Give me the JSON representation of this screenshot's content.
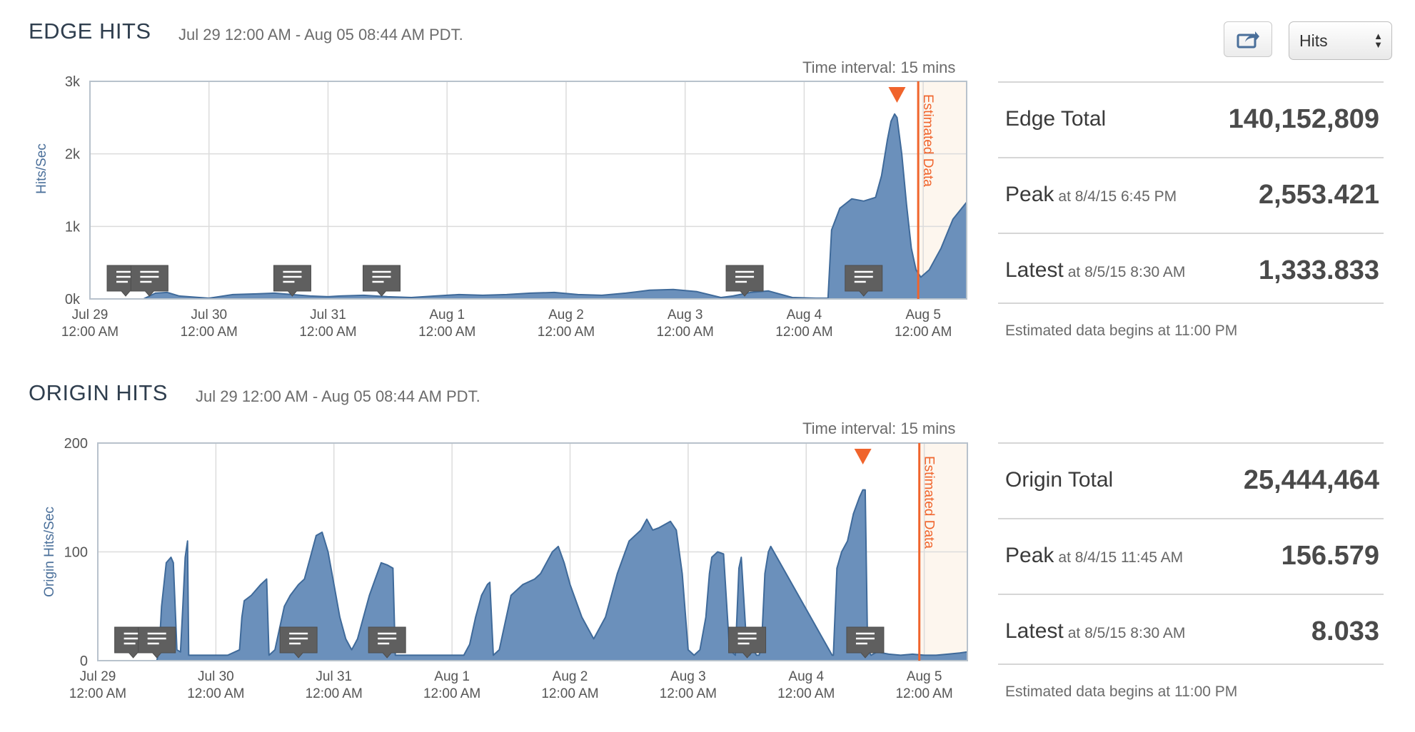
{
  "toolbar": {
    "share_icon": "share-icon",
    "metric_select": "Hits"
  },
  "colors": {
    "area_fill": "#6b90bb",
    "area_stroke": "#3f6a9a",
    "estimated": "#f0642c",
    "estimated_bg": "#fdf6ee",
    "marker_bg": "#5f5f5f"
  },
  "sections": [
    {
      "title": "EDGE HITS",
      "range": "Jul 29 12:00 AM - Aug 05 08:44 AM PDT.",
      "interval": "Time interval: 15 mins",
      "estimated_label": "Estimated Data",
      "stats": {
        "total_label": "Edge Total",
        "total_value": "140,152,809",
        "peak_label": "Peak",
        "peak_sub": "at 8/4/15 6:45 PM",
        "peak_value": "2,553.421",
        "latest_label": "Latest",
        "latest_sub": "at 8/5/15 8:30 AM",
        "latest_value": "1,333.833",
        "note": "Estimated data begins at 11:00 PM"
      }
    },
    {
      "title": "ORIGIN HITS",
      "range": "Jul 29 12:00 AM - Aug 05 08:44 AM PDT.",
      "interval": "Time interval: 15 mins",
      "estimated_label": "Estimated Data",
      "stats": {
        "total_label": "Origin Total",
        "total_value": "25,444,464",
        "peak_label": "Peak",
        "peak_sub": "at 8/4/15 11:45 AM",
        "peak_value": "156.579",
        "latest_label": "Latest",
        "latest_sub": "at 8/5/15 8:30 AM",
        "latest_value": "8.033",
        "note": "Estimated data begins at 11:00 PM"
      }
    }
  ],
  "chart_data": [
    {
      "type": "area",
      "ylabel": "Hits/Sec",
      "x_unit": "days since Jul 29 12:00 AM",
      "x_range": [
        0,
        7.365
      ],
      "ylim": [
        0,
        3000
      ],
      "yticks": [
        0,
        1000,
        2000,
        3000
      ],
      "yticklabels": [
        "0k",
        "1k",
        "2k",
        "3k"
      ],
      "xticks": [
        0,
        1,
        2,
        3,
        4,
        5,
        6,
        7
      ],
      "xticklabels": [
        [
          "Jul 29",
          "12:00 AM"
        ],
        [
          "Jul 30",
          "12:00 AM"
        ],
        [
          "Jul 31",
          "12:00 AM"
        ],
        [
          "Aug 1",
          "12:00 AM"
        ],
        [
          "Aug 2",
          "12:00 AM"
        ],
        [
          "Aug 3",
          "12:00 AM"
        ],
        [
          "Aug 4",
          "12:00 AM"
        ],
        [
          "Aug 5",
          "12:00 AM"
        ]
      ],
      "estimated_start": 6.958,
      "peak_x": 6.78,
      "annotations": [
        0.3,
        0.5,
        1.7,
        2.45,
        5.5,
        6.5
      ],
      "series": [
        {
          "x": [
            0,
            0.45,
            0.55,
            0.65,
            0.75,
            1.0,
            1.2,
            1.4,
            1.55,
            1.7,
            1.85,
            2.0,
            2.1,
            2.3,
            2.5,
            2.7,
            2.9,
            3.1,
            3.3,
            3.5,
            3.7,
            3.9,
            4.1,
            4.3,
            4.5,
            4.7,
            4.9,
            5.1,
            5.3,
            5.4,
            5.55,
            5.7,
            5.9,
            6.1,
            6.2,
            6.23,
            6.3,
            6.4,
            6.5,
            6.6,
            6.65,
            6.7,
            6.73,
            6.76,
            6.78,
            6.82,
            6.86,
            6.9,
            6.94,
            6.98,
            7.05,
            7.15,
            7.25,
            7.365
          ],
          "y": [
            0,
            0,
            80,
            90,
            40,
            10,
            60,
            70,
            80,
            60,
            40,
            30,
            40,
            50,
            30,
            20,
            40,
            60,
            50,
            60,
            80,
            90,
            60,
            50,
            80,
            120,
            130,
            100,
            20,
            40,
            90,
            110,
            20,
            10,
            10,
            950,
            1250,
            1380,
            1350,
            1400,
            1700,
            2200,
            2450,
            2550,
            2500,
            2000,
            1300,
            700,
            400,
            300,
            400,
            700,
            1100,
            1334
          ]
        }
      ]
    },
    {
      "type": "area",
      "ylabel": "Origin Hits/Sec",
      "x_unit": "days since Jul 29 12:00 AM",
      "x_range": [
        0,
        7.365
      ],
      "ylim": [
        0,
        200
      ],
      "yticks": [
        0,
        100,
        200
      ],
      "yticklabels": [
        "0",
        "100",
        "200"
      ],
      "xticks": [
        0,
        1,
        2,
        3,
        4,
        5,
        6,
        7
      ],
      "xticklabels": [
        [
          "Jul 29",
          "12:00 AM"
        ],
        [
          "Jul 30",
          "12:00 AM"
        ],
        [
          "Jul 31",
          "12:00 AM"
        ],
        [
          "Aug 1",
          "12:00 AM"
        ],
        [
          "Aug 2",
          "12:00 AM"
        ],
        [
          "Aug 3",
          "12:00 AM"
        ],
        [
          "Aug 4",
          "12:00 AM"
        ],
        [
          "Aug 5",
          "12:00 AM"
        ]
      ],
      "estimated_start": 6.958,
      "peak_x": 6.48,
      "annotations": [
        0.3,
        0.5,
        1.7,
        2.45,
        5.5,
        6.5
      ],
      "series": [
        {
          "x": [
            0,
            0.5,
            0.52,
            0.54,
            0.58,
            0.62,
            0.64,
            0.67,
            0.7,
            0.72,
            0.74,
            0.76,
            0.77,
            0.9,
            1.0,
            1.1,
            1.2,
            1.22,
            1.24,
            1.3,
            1.38,
            1.43,
            1.45,
            1.5,
            1.58,
            1.63,
            1.7,
            1.75,
            1.8,
            1.85,
            1.9,
            1.95,
            2.0,
            2.05,
            2.1,
            2.15,
            2.2,
            2.25,
            2.3,
            2.35,
            2.4,
            2.45,
            2.5,
            2.52,
            2.6,
            3.05,
            3.1,
            3.15,
            3.2,
            3.25,
            3.3,
            3.32,
            3.35,
            3.4,
            3.5,
            3.6,
            3.7,
            3.75,
            3.8,
            3.85,
            3.9,
            3.95,
            4.0,
            4.1,
            4.2,
            4.3,
            4.4,
            4.5,
            4.6,
            4.65,
            4.7,
            4.75,
            4.8,
            4.85,
            4.9,
            4.95,
            5.0,
            5.05,
            5.1,
            5.15,
            5.18,
            5.2,
            5.25,
            5.3,
            5.35,
            5.4,
            5.43,
            5.45,
            5.5,
            5.52,
            5.55,
            5.58,
            5.6,
            5.62,
            5.65,
            5.68,
            5.7,
            6.22,
            6.23,
            6.26,
            6.3,
            6.35,
            6.4,
            6.45,
            6.48,
            6.5,
            6.52,
            6.55,
            6.6,
            6.7,
            6.8,
            6.9,
            7.0,
            7.1,
            7.2,
            7.3,
            7.365
          ],
          "y": [
            0,
            0,
            10,
            50,
            90,
            95,
            90,
            10,
            8,
            50,
            95,
            110,
            5,
            5,
            5,
            5,
            10,
            40,
            55,
            60,
            70,
            75,
            5,
            10,
            50,
            60,
            70,
            75,
            95,
            115,
            118,
            100,
            70,
            40,
            20,
            10,
            20,
            40,
            60,
            75,
            90,
            88,
            85,
            5,
            5,
            5,
            5,
            15,
            40,
            60,
            70,
            72,
            5,
            10,
            60,
            70,
            75,
            80,
            90,
            100,
            105,
            90,
            70,
            40,
            20,
            40,
            80,
            110,
            120,
            130,
            120,
            122,
            125,
            128,
            120,
            80,
            10,
            5,
            10,
            40,
            80,
            95,
            100,
            98,
            10,
            5,
            85,
            95,
            5,
            5,
            10,
            5,
            5,
            10,
            80,
            100,
            105,
            5,
            5,
            85,
            100,
            110,
            135,
            150,
            157,
            157,
            10,
            5,
            8,
            6,
            5,
            6,
            5,
            5,
            6,
            7,
            8
          ]
        }
      ]
    }
  ]
}
